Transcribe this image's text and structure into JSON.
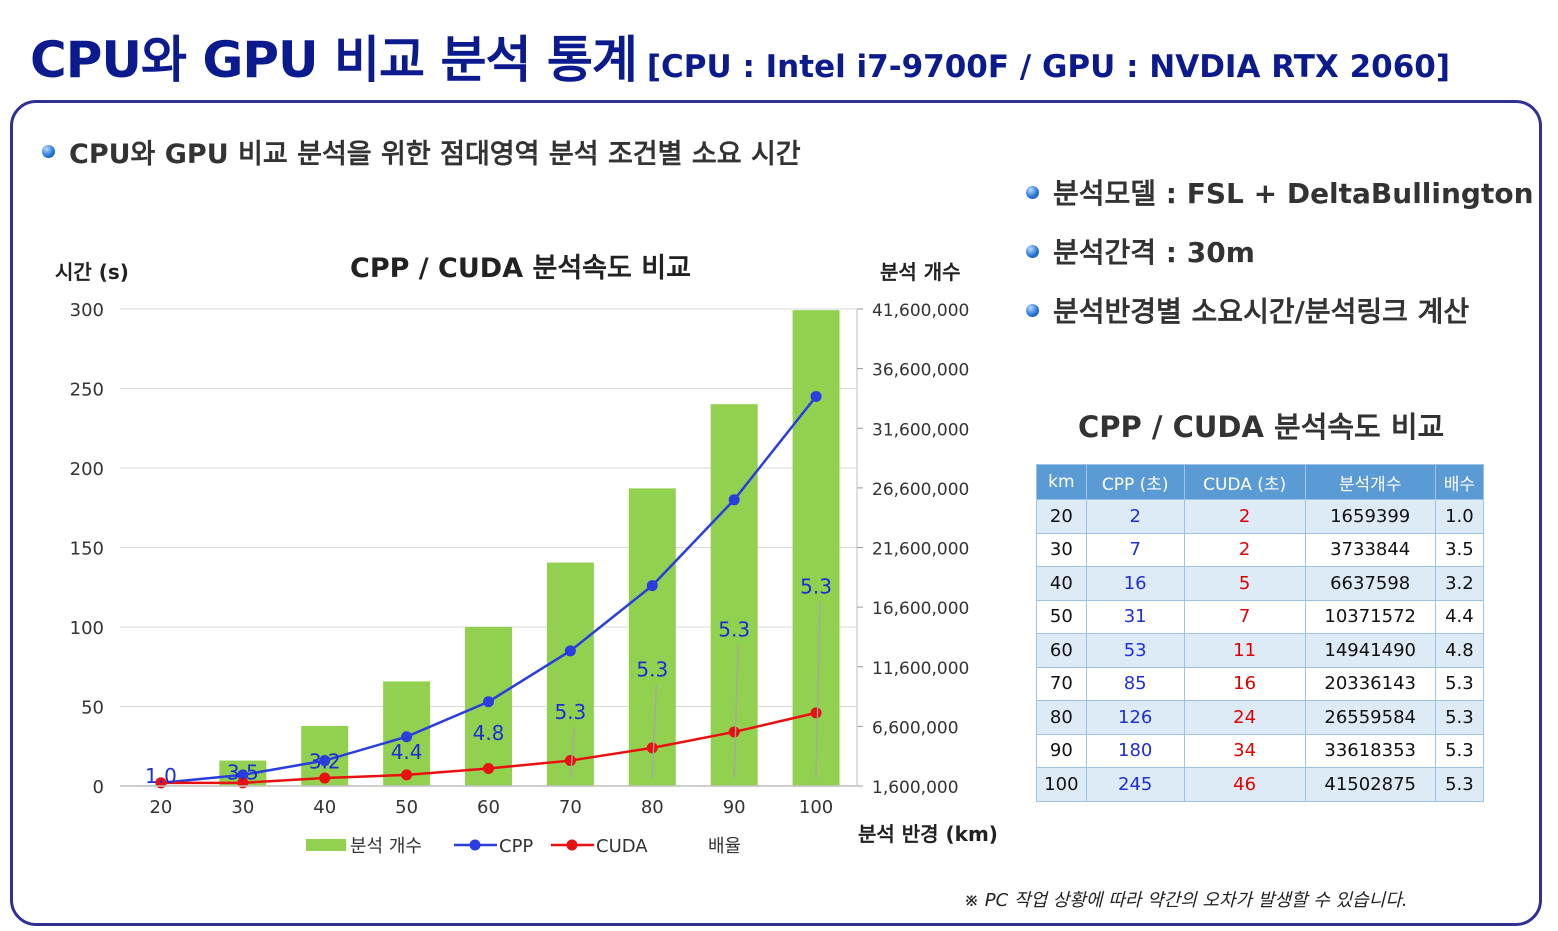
{
  "header": {
    "title": "CPU와 GPU 비교 분석 통계",
    "subtitle": "[CPU : Intel i7-9700F / GPU : NVDIA RTX 2060]"
  },
  "section_heading": "CPU와 GPU 비교 분석을 위한 점대영역 분석 조건별 소요 시간",
  "info_items": [
    "분석모델 : FSL + DeltaBullington",
    "분석간격 : 30m",
    "분석반경별 소요시간/분석링크 계산"
  ],
  "colors": {
    "title": "#0b1a8c",
    "border": "#2e3192",
    "bar": "#92d050",
    "cpp": "#2a3ee0",
    "cuda": "#e81010",
    "ratio_label": "#1a2fd6",
    "table_header": "#5b9bd5"
  },
  "chart_data": {
    "type": "bar",
    "title": "CPP / CUDA 분석속도 비교",
    "xlabel": "분석 반경 (km)",
    "ylabel": "시간 (s)",
    "y2label": "분석 개수",
    "categories": [
      "20",
      "30",
      "40",
      "50",
      "60",
      "70",
      "80",
      "90",
      "100"
    ],
    "ylim": [
      0,
      300
    ],
    "yticks": [
      "300",
      "250",
      "200",
      "150",
      "100",
      "50",
      "0"
    ],
    "y2lim": [
      1600000,
      41600000
    ],
    "y2ticks": [
      "41,600,000",
      "36,600,000",
      "31,600,000",
      "26,600,000",
      "21,600,000",
      "16,600,000",
      "11,600,000",
      "6,600,000",
      "1,600,000"
    ],
    "series": [
      {
        "name": "분석 개수",
        "kind": "bar",
        "axis": "right",
        "values": [
          1659399,
          3733844,
          6637598,
          10371572,
          14941490,
          20336143,
          26559584,
          33618353,
          41502875
        ]
      },
      {
        "name": "CPP",
        "kind": "line",
        "axis": "left",
        "values": [
          2,
          7,
          16,
          31,
          53,
          85,
          126,
          180,
          245
        ]
      },
      {
        "name": "CUDA",
        "kind": "line",
        "axis": "left",
        "values": [
          2,
          2,
          5,
          7,
          11,
          16,
          24,
          34,
          46
        ]
      },
      {
        "name": "배율",
        "kind": "label",
        "axis": "left",
        "values": [
          1.0,
          3.5,
          3.2,
          4.4,
          4.8,
          5.3,
          5.3,
          5.3,
          5.3
        ],
        "labels": [
          "1.0",
          "3.5",
          "3.2",
          "4.4",
          "4.8",
          "5.3",
          "5.3",
          "5.3",
          "5.3"
        ],
        "label_y": [
          2,
          4,
          11,
          17,
          29,
          42,
          69,
          94,
          121
        ]
      }
    ],
    "legend": [
      "분석 개수",
      "CPP",
      "CUDA",
      "배율"
    ],
    "legend_position": "bottom",
    "grid": true
  },
  "table": {
    "title": "CPP / CUDA 분석속도 비교",
    "columns": [
      "km",
      "CPP (초)",
      "CUDA (초)",
      "분석개수",
      "배수"
    ],
    "rows": [
      [
        "20",
        "2",
        "2",
        "1659399",
        "1.0"
      ],
      [
        "30",
        "7",
        "2",
        "3733844",
        "3.5"
      ],
      [
        "40",
        "16",
        "5",
        "6637598",
        "3.2"
      ],
      [
        "50",
        "31",
        "7",
        "10371572",
        "4.4"
      ],
      [
        "60",
        "53",
        "11",
        "14941490",
        "4.8"
      ],
      [
        "70",
        "85",
        "16",
        "20336143",
        "5.3"
      ],
      [
        "80",
        "126",
        "24",
        "26559584",
        "5.3"
      ],
      [
        "90",
        "180",
        "34",
        "33618353",
        "5.3"
      ],
      [
        "100",
        "245",
        "46",
        "41502875",
        "5.3"
      ]
    ]
  },
  "footnote": "※ PC 작업 상황에 따라 약간의 오차가 발생할 수 있습니다."
}
